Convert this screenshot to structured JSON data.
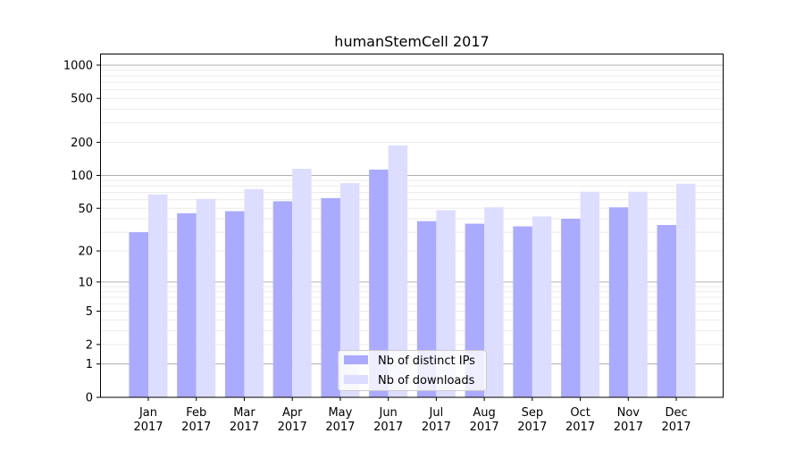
{
  "chart_data": {
    "type": "bar",
    "title": "humanStemCell 2017",
    "xlabel": "",
    "ylabel": "",
    "yscale": "symlog",
    "ylim": [
      0,
      1300
    ],
    "yticks": [
      0,
      1,
      2,
      5,
      10,
      20,
      50,
      100,
      200,
      500,
      1000
    ],
    "ytick_labels": [
      "0",
      "1",
      "2",
      "5",
      "10",
      "20",
      "50",
      "100",
      "200",
      "500",
      "1000"
    ],
    "grid": true,
    "legend_position": "bottom-center",
    "categories": [
      "Jan\n2017",
      "Feb\n2017",
      "Mar\n2017",
      "Apr\n2017",
      "May\n2017",
      "Jun\n2017",
      "Jul\n2017",
      "Aug\n2017",
      "Sep\n2017",
      "Oct\n2017",
      "Nov\n2017",
      "Dec\n2017"
    ],
    "category_months": [
      "Jan",
      "Feb",
      "Mar",
      "Apr",
      "May",
      "Jun",
      "Jul",
      "Aug",
      "Sep",
      "Oct",
      "Nov",
      "Dec"
    ],
    "category_year": "2017",
    "series": [
      {
        "name": "Nb of distinct IPs",
        "color": "#aaaaff",
        "values": [
          30,
          45,
          47,
          58,
          62,
          113,
          38,
          36,
          34,
          40,
          51,
          35
        ]
      },
      {
        "name": "Nb of downloads",
        "color": "#ddddff",
        "values": [
          67,
          61,
          75,
          115,
          85,
          187,
          48,
          51,
          42,
          71,
          71,
          84
        ]
      }
    ]
  }
}
